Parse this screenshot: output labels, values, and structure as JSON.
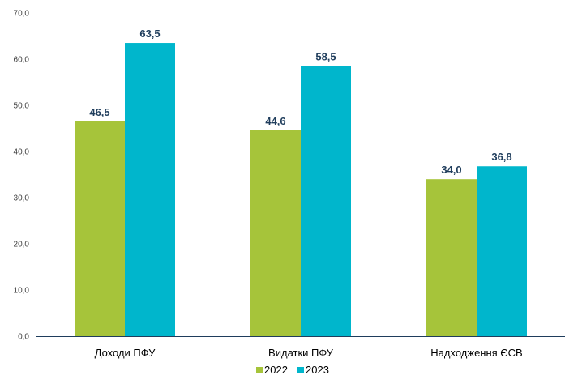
{
  "chart_data": {
    "type": "bar",
    "categories": [
      "Доходи ПФУ",
      "Видатки ПФУ",
      "Надходження ЄСВ"
    ],
    "series": [
      {
        "name": "2022",
        "color": "#a6c43a",
        "values": [
          46.5,
          44.6,
          34.0
        ],
        "labels": [
          "46,5",
          "44,6",
          "34,0"
        ]
      },
      {
        "name": "2023",
        "color": "#00b6cc",
        "values": [
          63.5,
          58.5,
          36.8
        ],
        "labels": [
          "63,5",
          "58,5",
          "36,8"
        ]
      }
    ],
    "ylim": [
      0,
      70
    ],
    "yticks": [
      0,
      10,
      20,
      30,
      40,
      50,
      60,
      70
    ],
    "ytick_labels": [
      "0,0",
      "10,0",
      "20,0",
      "30,0",
      "40,0",
      "50,0",
      "60,0",
      "70,0"
    ],
    "grid": false,
    "legend": "bottom",
    "axis_color": "#1f3d5c",
    "label_color": "#1f3d5c"
  }
}
